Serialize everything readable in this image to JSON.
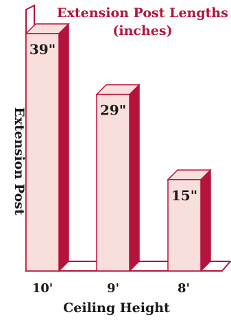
{
  "chart_data": {
    "type": "bar",
    "title_lines": [
      "Extension Post Lengths",
      "(inches)"
    ],
    "xlabel": "Ceiling Height",
    "ylabel": "Extension Post",
    "categories": [
      "10'",
      "9'",
      "8'"
    ],
    "values": [
      39,
      29,
      15
    ],
    "value_labels": [
      "39\"",
      "29\"",
      "15\""
    ],
    "ylim": [
      0,
      40
    ],
    "grid": false,
    "colors": {
      "bar_front": "#f8dfdc",
      "bar_side": "#b5123c",
      "outline": "#b5123c",
      "title": "#b5123c",
      "axis_text": "#1a1a1a"
    }
  }
}
